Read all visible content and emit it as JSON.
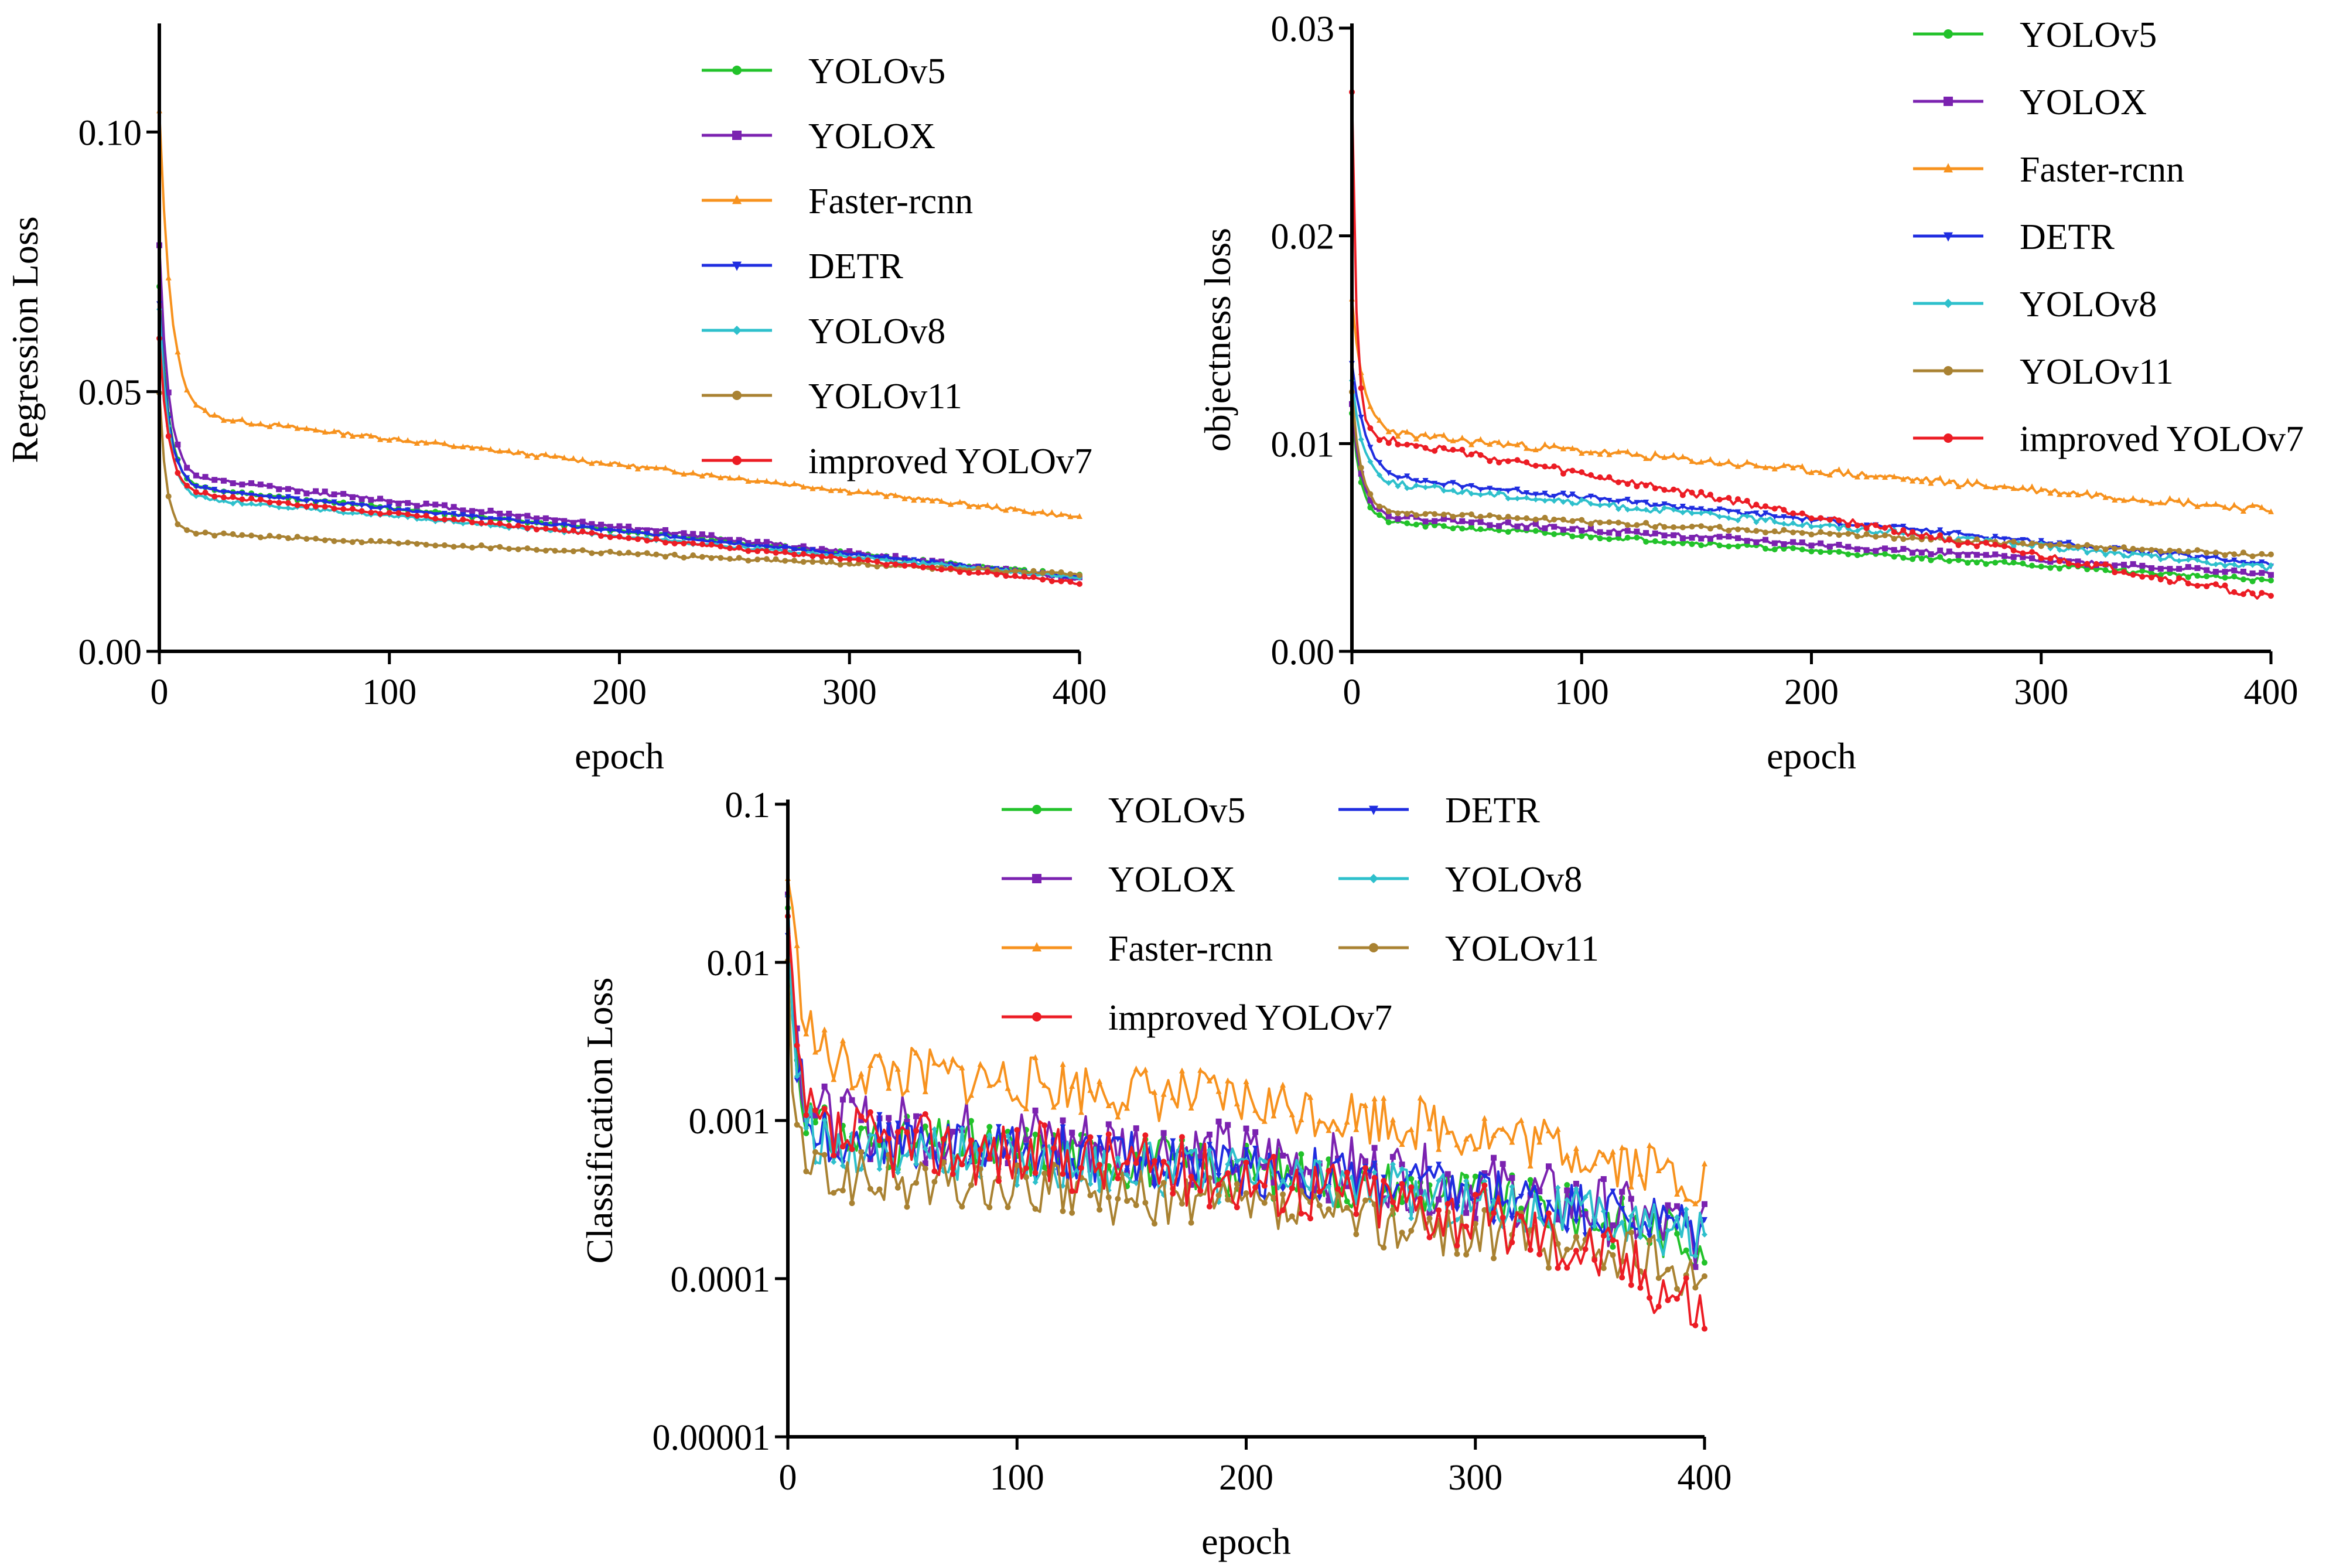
{
  "figure": {
    "colors": {
      "YOLOv5": "#22c22a",
      "YOLOX": "#7b22b0",
      "Faster-rcnn": "#f7921e",
      "DETR": "#1f2de0",
      "YOLOv8": "#2ec0cc",
      "YOLOv11": "#a98232",
      "improved YOLOv7": "#ec1c24"
    }
  },
  "chart_data": [
    {
      "type": "line",
      "id": "regression",
      "title": "",
      "xlabel": "epoch",
      "ylabel": "Regression Loss",
      "xlim": [
        0,
        400
      ],
      "ylim": [
        0,
        0.12
      ],
      "scale": "linear",
      "xticks": [
        0,
        100,
        200,
        300,
        400
      ],
      "xtick_labels": [
        "0",
        "100",
        "200",
        "300",
        "400"
      ],
      "yticks": [
        0,
        0.05,
        0.1
      ],
      "ytick_labels": [
        "0.00",
        "0.05",
        "0.10"
      ],
      "legend": [
        "YOLOv5",
        "YOLOX",
        "Faster-rcnn",
        "DETR",
        "YOLOv8",
        "YOLOv11",
        "improved YOLOv7"
      ],
      "legend_position": "top-right",
      "series": [
        {
          "name": "YOLOv5",
          "marker": "circle",
          "start": 0.07,
          "knee": 0.032,
          "end": 0.0145,
          "tau": 4,
          "noise": 0.0003,
          "seed": 11
        },
        {
          "name": "YOLOX",
          "marker": "square",
          "start": 0.078,
          "knee": 0.034,
          "end": 0.014,
          "tau": 4,
          "noise": 0.0004,
          "seed": 12
        },
        {
          "name": "Faster-rcnn",
          "marker": "triangle",
          "start": 0.104,
          "knee": 0.046,
          "end": 0.0258,
          "tau": 5,
          "noise": 0.0004,
          "seed": 13
        },
        {
          "name": "DETR",
          "marker": "triangle-down",
          "start": 0.067,
          "knee": 0.032,
          "end": 0.0142,
          "tau": 4,
          "noise": 0.0003,
          "seed": 14
        },
        {
          "name": "YOLOv8",
          "marker": "diamond",
          "start": 0.066,
          "knee": 0.03,
          "end": 0.0142,
          "tau": 4,
          "noise": 0.0003,
          "seed": 15
        },
        {
          "name": "YOLOv11",
          "marker": "circle",
          "start": 0.05,
          "knee": 0.023,
          "end": 0.0148,
          "tau": 3,
          "noise": 0.0003,
          "seed": 16
        },
        {
          "name": "improved YOLOv7",
          "marker": "circle",
          "start": 0.06,
          "knee": 0.031,
          "end": 0.0132,
          "tau": 4,
          "noise": 0.0003,
          "seed": 17
        }
      ]
    },
    {
      "type": "line",
      "id": "objectness",
      "title": "",
      "xlabel": "epoch",
      "ylabel": "objectness loss",
      "xlim": [
        0,
        400
      ],
      "ylim": [
        0,
        0.03
      ],
      "scale": "linear",
      "xticks": [
        0,
        100,
        200,
        300,
        400
      ],
      "xtick_labels": [
        "0",
        "100",
        "200",
        "300",
        "400"
      ],
      "yticks": [
        0,
        0.01,
        0.02,
        0.03
      ],
      "ytick_labels": [
        "0.00",
        "0.01",
        "0.02",
        "0.03"
      ],
      "legend": [
        "YOLOv5",
        "YOLOX",
        "Faster-rcnn",
        "DETR",
        "YOLOv8",
        "YOLOv11",
        "improved YOLOv7"
      ],
      "legend_position": "top-right",
      "series": [
        {
          "name": "YOLOv5",
          "marker": "circle",
          "start": 0.0115,
          "knee": 0.0063,
          "end": 0.0034,
          "tau": 4,
          "noise": 0.0001,
          "seed": 21
        },
        {
          "name": "YOLOX",
          "marker": "square",
          "start": 0.012,
          "knee": 0.0066,
          "end": 0.0037,
          "tau": 4,
          "noise": 0.00012,
          "seed": 22
        },
        {
          "name": "Faster-rcnn",
          "marker": "triangle",
          "start": 0.0168,
          "knee": 0.0106,
          "end": 0.0068,
          "tau": 5,
          "noise": 0.00018,
          "seed": 23
        },
        {
          "name": "DETR",
          "marker": "triangle-down",
          "start": 0.0138,
          "knee": 0.0085,
          "end": 0.0042,
          "tau": 6,
          "noise": 0.00012,
          "seed": 24
        },
        {
          "name": "YOLOv8",
          "marker": "diamond",
          "start": 0.013,
          "knee": 0.0082,
          "end": 0.004,
          "tau": 5,
          "noise": 0.00015,
          "seed": 25
        },
        {
          "name": "YOLOv11",
          "marker": "circle",
          "start": 0.0125,
          "knee": 0.0068,
          "end": 0.0046,
          "tau": 4,
          "noise": 0.0001,
          "seed": 26
        },
        {
          "name": "improved YOLOv7",
          "marker": "circle",
          "start": 0.027,
          "knee": 0.0105,
          "end": 0.0026,
          "tau": 2,
          "noise": 0.00018,
          "seed": 27
        }
      ]
    },
    {
      "type": "line",
      "id": "classification",
      "title": "",
      "xlabel": "epoch",
      "ylabel": "Classification Loss",
      "xlim": [
        0,
        400
      ],
      "ylim": [
        1e-05,
        0.1
      ],
      "scale": "log",
      "xticks": [
        0,
        100,
        200,
        300,
        400
      ],
      "xtick_labels": [
        "0",
        "100",
        "200",
        "300",
        "400"
      ],
      "yticks": [
        1e-05,
        0.0001,
        0.001,
        0.01,
        0.1
      ],
      "ytick_labels": [
        "0.00001",
        "0.0001",
        "0.001",
        "0.01",
        "0.1"
      ],
      "legend": [
        "YOLOv5",
        "YOLOX",
        "Faster-rcnn",
        "improved YOLOv7",
        "DETR",
        "YOLOv8",
        "YOLOv11"
      ],
      "legend_position": "top-right",
      "series": [
        {
          "name": "YOLOv5",
          "marker": "circle",
          "start": 0.02,
          "knee": 0.0008,
          "end": 0.00017,
          "tau": 4,
          "noise": 0.08,
          "seed": 31
        },
        {
          "name": "YOLOX",
          "marker": "square",
          "start": 0.028,
          "knee": 0.001,
          "end": 0.00018,
          "tau": 4,
          "noise": 0.1,
          "seed": 32
        },
        {
          "name": "Faster-rcnn",
          "marker": "triangle",
          "start": 0.04,
          "knee": 0.0022,
          "end": 0.0004,
          "tau": 6,
          "noise": 0.08,
          "seed": 33
        },
        {
          "name": "DETR",
          "marker": "triangle-down",
          "start": 0.02,
          "knee": 0.0008,
          "end": 0.0002,
          "tau": 4,
          "noise": 0.08,
          "seed": 34
        },
        {
          "name": "YOLOv8",
          "marker": "diamond",
          "start": 0.018,
          "knee": 0.0007,
          "end": 0.00018,
          "tau": 4,
          "noise": 0.08,
          "seed": 35
        },
        {
          "name": "YOLOv11",
          "marker": "circle",
          "start": 0.008,
          "knee": 0.00045,
          "end": 0.00011,
          "tau": 3,
          "noise": 0.08,
          "seed": 36
        },
        {
          "name": "improved YOLOv7",
          "marker": "circle",
          "start": 0.017,
          "knee": 0.0008,
          "end": 6e-05,
          "tau": 4,
          "noise": 0.1,
          "seed": 37
        }
      ]
    }
  ]
}
